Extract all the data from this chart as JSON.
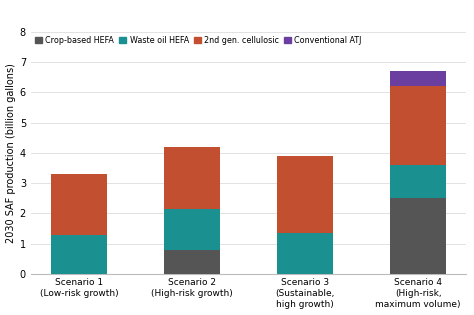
{
  "categories": [
    "Scenario 1\n(Low-risk growth)",
    "Scenario 2\n(High-risk growth)",
    "Scenario 3\n(Sustainable,\nhigh growth)",
    "Scenario 4\n(High-risk,\nmaximum volume)"
  ],
  "series": {
    "Crop-based HEFA": [
      0.0,
      0.8,
      0.0,
      2.5
    ],
    "Waste oil HEFA": [
      1.3,
      1.35,
      1.35,
      1.1
    ],
    "2nd gen. cellulosic": [
      2.0,
      2.05,
      2.55,
      2.6
    ],
    "Conventional ATJ": [
      0.0,
      0.0,
      0.0,
      0.5
    ]
  },
  "colors": {
    "Crop-based HEFA": "#555555",
    "Waste oil HEFA": "#1a9090",
    "2nd gen. cellulosic": "#c25030",
    "Conventional ATJ": "#6b3fa0"
  },
  "ylabel": "2030 SAF production (billion gallons)",
  "ylim": [
    0,
    8
  ],
  "yticks": [
    0,
    1,
    2,
    3,
    4,
    5,
    6,
    7,
    8
  ],
  "background_color": "#ffffff",
  "grid_color": "#dddddd",
  "bar_width": 0.5
}
